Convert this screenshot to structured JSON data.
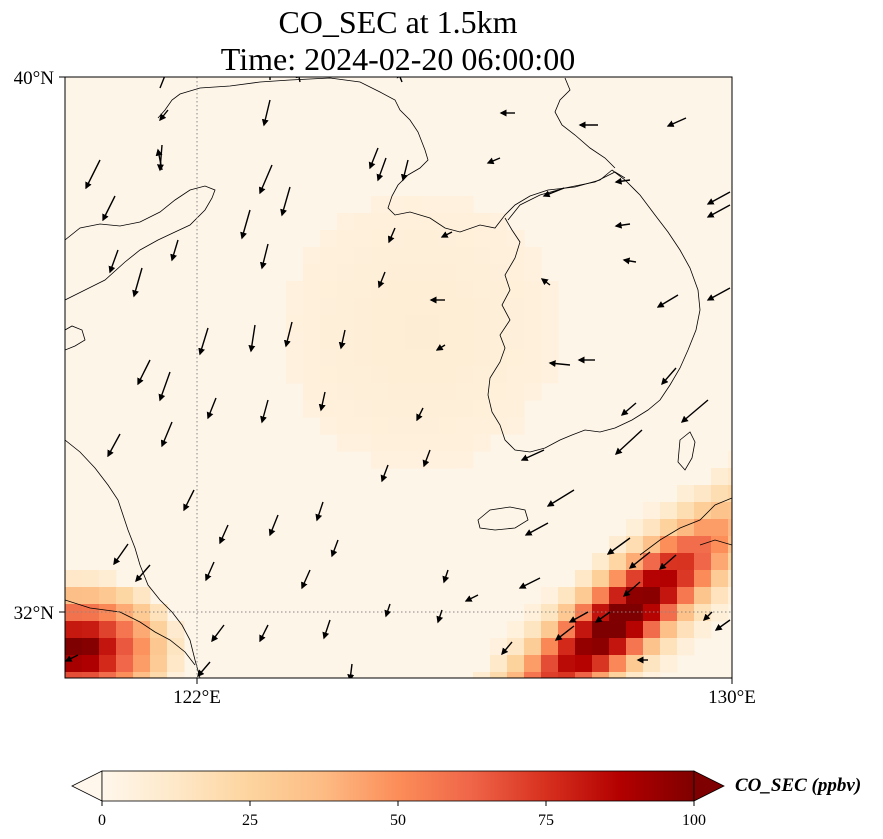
{
  "figure": {
    "title_line1": "CO_SEC at 1.5km",
    "title_line2": "Time: 2024-02-20 06:00:00"
  },
  "map": {
    "lon_range": [
      118,
      130
    ],
    "lat_range": [
      31.2,
      40
    ],
    "lon_ticks": [
      {
        "value": 122,
        "label": "122°E"
      },
      {
        "value": 130,
        "label": "130°E"
      }
    ],
    "lat_ticks": [
      {
        "value": 40,
        "label": "40°N"
      },
      {
        "value": 32,
        "label": "32°N"
      }
    ],
    "gridlines": "dotted",
    "colors": {
      "land_outline": "#000000",
      "grid": "#888888",
      "arrow": "#000000"
    }
  },
  "colorbar": {
    "label": "CO_SEC (ppbv)",
    "min": 0,
    "max": 100,
    "ticks": [
      0,
      25,
      50,
      75,
      100
    ],
    "tick_labels": [
      "0",
      "25",
      "50",
      "75",
      "100"
    ],
    "extend": "both",
    "colormap": "OrRd",
    "stops": [
      "#fff7ec",
      "#fee8c8",
      "#fdd49e",
      "#fdbb84",
      "#fc8d59",
      "#ef6548",
      "#d7301f",
      "#b30000",
      "#7f0000"
    ]
  }
}
